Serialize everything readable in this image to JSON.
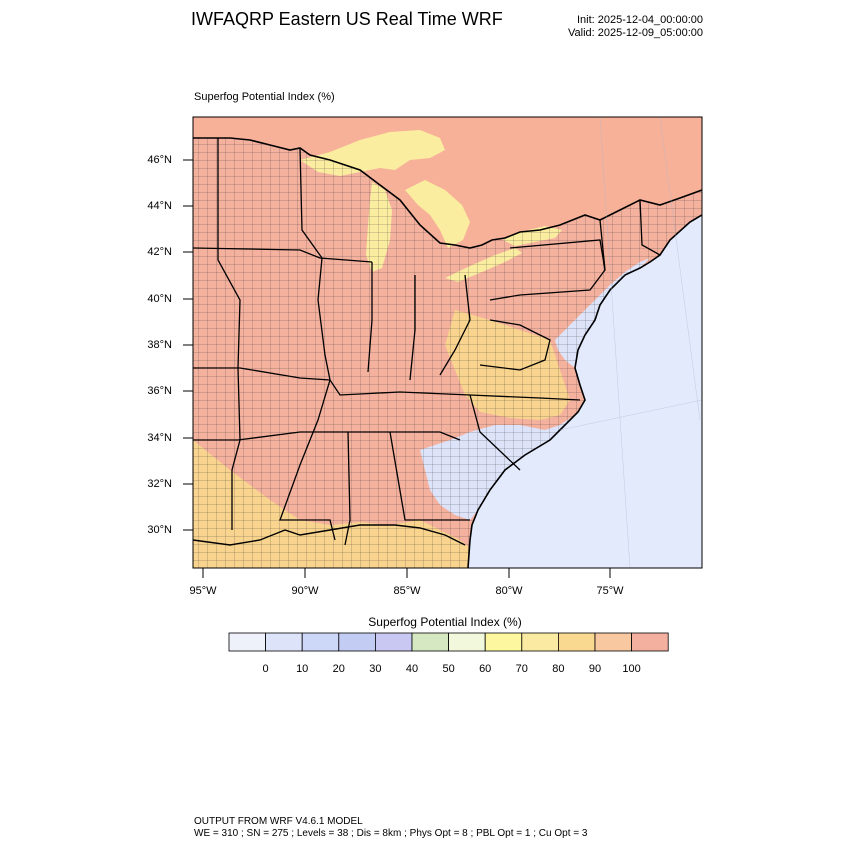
{
  "header": {
    "title": "IWFAQRP Eastern US Real Time WRF",
    "init": "Init: 2025-12-04_00:00:00",
    "valid": "Valid: 2025-12-09_05:00:00"
  },
  "plot": {
    "title": "Superfog Potential Index   (%)",
    "lat_labels": [
      "46°N",
      "44°N",
      "42°N",
      "40°N",
      "38°N",
      "36°N",
      "34°N",
      "32°N",
      "30°N"
    ],
    "lon_labels": [
      "95°W",
      "90°W",
      "85°W",
      "80°W",
      "75°W"
    ]
  },
  "colorbar": {
    "title": "Superfog Potential Index  (%)",
    "labels": [
      "0",
      "10",
      "20",
      "30",
      "40",
      "50",
      "60",
      "70",
      "80",
      "90",
      "100"
    ],
    "colors": [
      "#eef0fa",
      "#dde4fa",
      "#cdd7f7",
      "#c3cdf3",
      "#c8c8f2",
      "#d6e8c2",
      "#f2f8dc",
      "#fdf8a0",
      "#fbeaa2",
      "#f9d890",
      "#f8c8a0",
      "#f4b09e"
    ]
  },
  "map_colors": {
    "ocean": "#e3eafc",
    "land_high": "#f4b19e",
    "land_mid": "#f9d48e",
    "land_low": "#dde4fa",
    "lakes": "#fbeda0",
    "canada": "#f7b199"
  },
  "footer": {
    "line1": "OUTPUT FROM WRF V4.6.1 MODEL",
    "line2": "WE = 310 ; SN = 275 ; Levels = 38 ; Dis = 8km ; Phys Opt = 8 ; PBL Opt = 1 ; Cu Opt = 3"
  }
}
